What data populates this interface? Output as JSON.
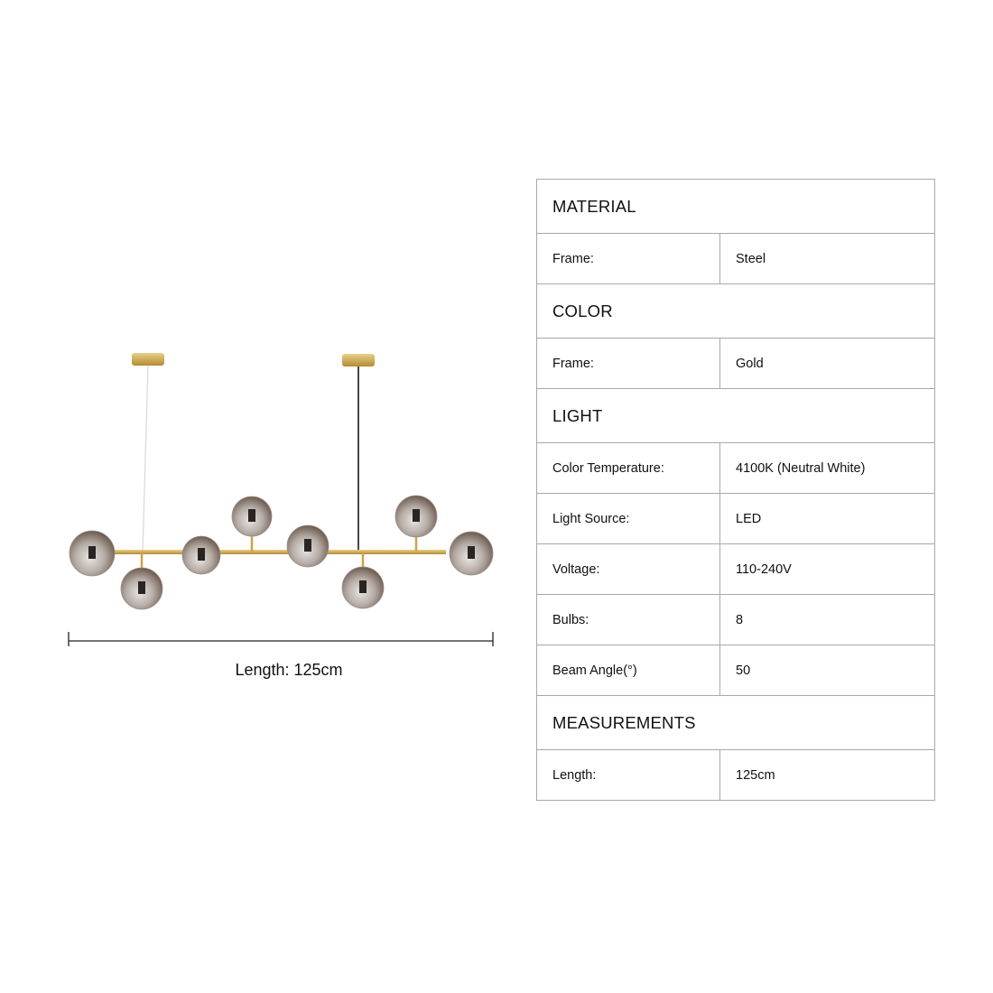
{
  "dimension": {
    "label": "Length: 125cm"
  },
  "spec_sections": [
    {
      "title": "MATERIAL",
      "rows": [
        {
          "key": "Frame:",
          "value": "Steel"
        }
      ]
    },
    {
      "title": "COLOR",
      "rows": [
        {
          "key": "Frame:",
          "value": "Gold"
        }
      ]
    },
    {
      "title": "LIGHT",
      "rows": [
        {
          "key": "Color Temperature:",
          "value": "4100K (Neutral White)"
        },
        {
          "key": "Light Source:",
          "value": "LED"
        },
        {
          "key": "Voltage:",
          "value": "110-240V"
        },
        {
          "key": "Bulbs:",
          "value": "8"
        },
        {
          "key": "Beam Angle(°)",
          "value": "50"
        }
      ]
    },
    {
      "title": "MEASUREMENTS",
      "rows": [
        {
          "key": "Length:",
          "value": "125cm"
        }
      ]
    }
  ],
  "colors": {
    "gold": "#c9a54a",
    "border": "#a8a8a8",
    "smoke_glass": "#8a7f78"
  }
}
